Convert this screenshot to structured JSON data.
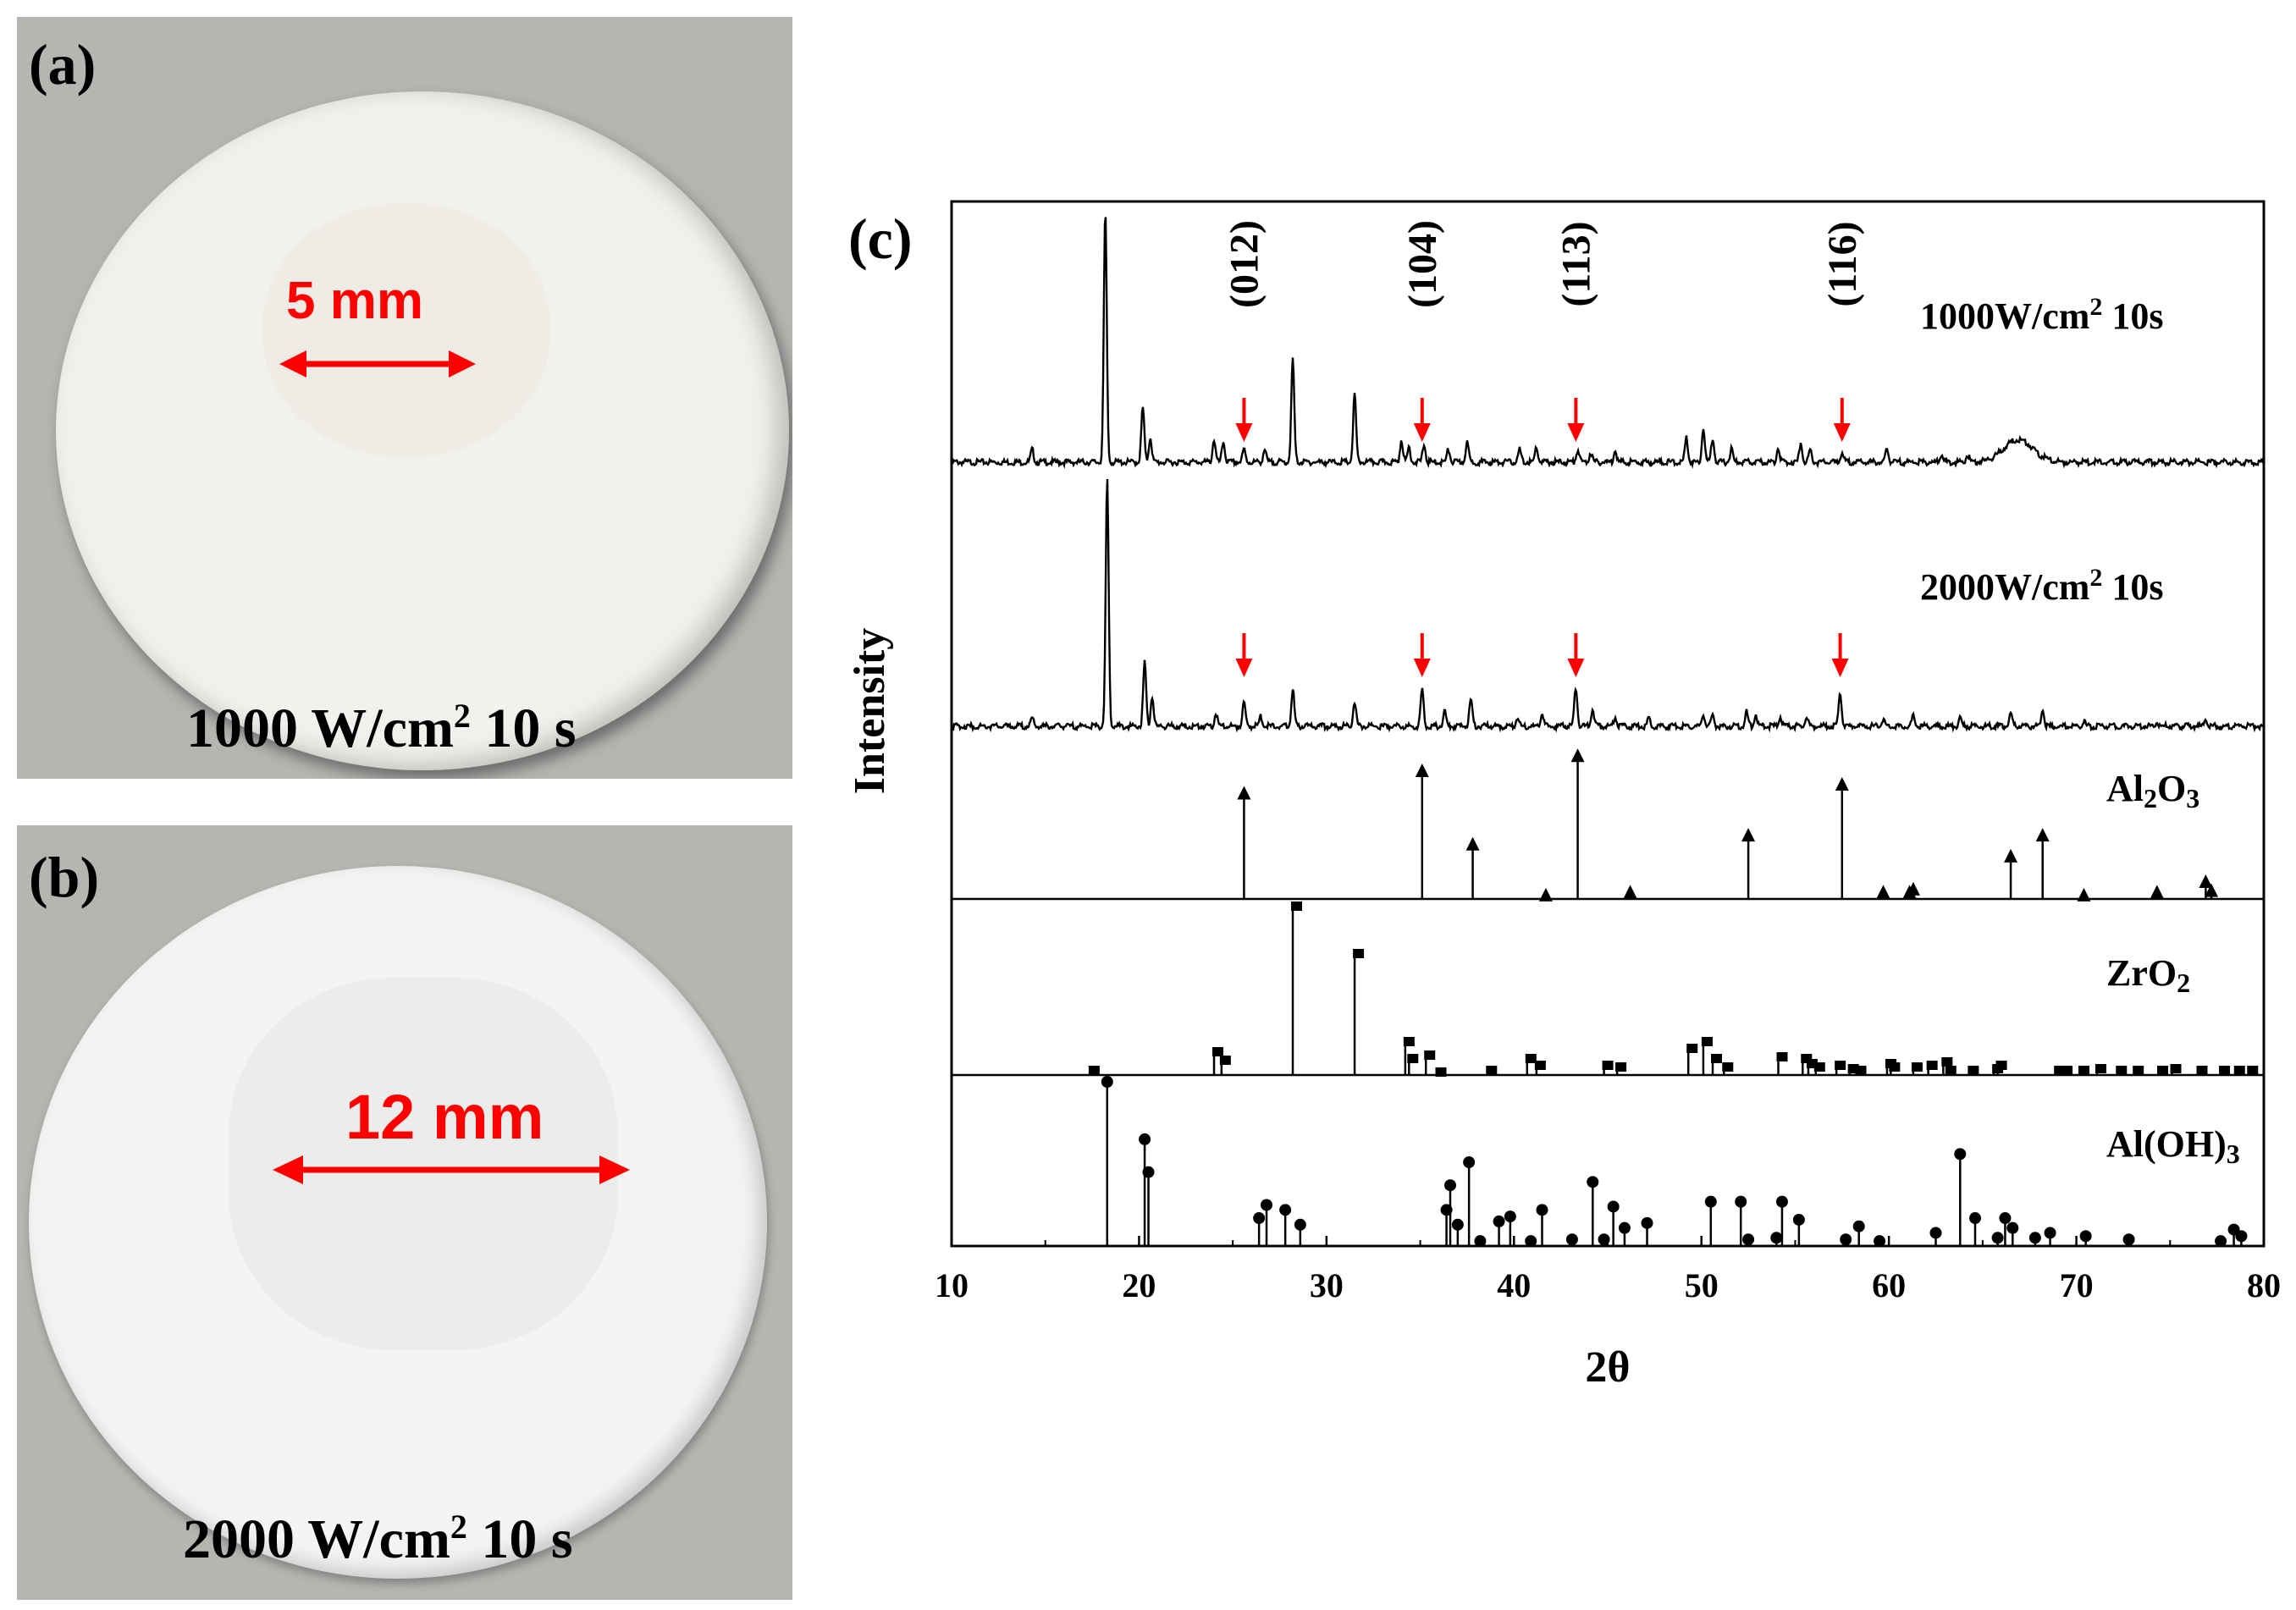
{
  "figure": {
    "panels": [
      {
        "label": "(a)",
        "caption_main": "1000 W/cm",
        "caption_sup": "2",
        "caption_end": " 10 s",
        "measure_text": "5 mm"
      },
      {
        "label": "(b)",
        "caption_main": "2000 W/cm",
        "caption_sup": "2",
        "caption_end": " 10 s",
        "measure_text": "12 mm"
      }
    ],
    "chart_label": "(c)",
    "colors": {
      "accent_red": "#ff0000",
      "photo_bg": "#b5b5b2",
      "disc": "#f2f2ee",
      "line": "#000000"
    }
  },
  "chart_data": {
    "type": "line",
    "xlabel": "2θ",
    "ylabel": "Intensity",
    "xlim": [
      10,
      80
    ],
    "xticks": [
      10,
      20,
      30,
      40,
      50,
      60,
      70,
      80
    ],
    "series": [
      {
        "name": "1000W/cm² 10s",
        "label_main": "1000W/cm",
        "label_sup": "2",
        "label_end": " 10s",
        "peaks": [
          [
            14.3,
            0.05
          ],
          [
            18.2,
            1.0
          ],
          [
            20.2,
            0.22
          ],
          [
            20.6,
            0.1
          ],
          [
            24.0,
            0.09
          ],
          [
            24.5,
            0.08
          ],
          [
            25.6,
            0.05
          ],
          [
            26.7,
            0.05
          ],
          [
            28.2,
            0.41
          ],
          [
            31.5,
            0.27
          ],
          [
            34.0,
            0.09
          ],
          [
            34.4,
            0.06
          ],
          [
            35.2,
            0.07
          ],
          [
            36.5,
            0.05
          ],
          [
            37.5,
            0.08
          ],
          [
            40.3,
            0.05
          ],
          [
            41.2,
            0.06
          ],
          [
            43.4,
            0.05
          ],
          [
            44.1,
            0.04
          ],
          [
            45.4,
            0.05
          ],
          [
            49.2,
            0.1
          ],
          [
            50.1,
            0.14
          ],
          [
            50.6,
            0.1
          ],
          [
            51.6,
            0.05
          ],
          [
            54.1,
            0.06
          ],
          [
            55.3,
            0.08
          ],
          [
            55.8,
            0.05
          ],
          [
            57.5,
            0.04
          ],
          [
            59.9,
            0.05
          ],
          [
            62.8,
            0.03
          ],
          [
            64.2,
            0.03
          ]
        ],
        "humps": [
          [
            66.9,
            1.1,
            0.09
          ]
        ],
        "hkl_arrows": [
          {
            "x": 25.6,
            "hkl": "(012)"
          },
          {
            "x": 35.1,
            "hkl": "(104)"
          },
          {
            "x": 43.3,
            "hkl": "(113)"
          },
          {
            "x": 57.5,
            "hkl": "(116)"
          }
        ]
      },
      {
        "name": "2000W/cm² 10s",
        "label_main": "2000W/cm",
        "label_sup": "2",
        "label_end": " 10s",
        "peaks": [
          [
            14.3,
            0.03
          ],
          [
            18.3,
            1.0
          ],
          [
            20.3,
            0.26
          ],
          [
            20.7,
            0.12
          ],
          [
            24.1,
            0.05
          ],
          [
            25.6,
            0.1
          ],
          [
            26.5,
            0.04
          ],
          [
            28.2,
            0.15
          ],
          [
            31.5,
            0.1
          ],
          [
            35.1,
            0.15
          ],
          [
            36.3,
            0.06
          ],
          [
            37.7,
            0.11
          ],
          [
            40.2,
            0.04
          ],
          [
            41.5,
            0.05
          ],
          [
            43.3,
            0.16
          ],
          [
            44.2,
            0.07
          ],
          [
            45.4,
            0.04
          ],
          [
            47.2,
            0.03
          ],
          [
            50.1,
            0.05
          ],
          [
            50.6,
            0.04
          ],
          [
            52.4,
            0.06
          ],
          [
            52.9,
            0.05
          ],
          [
            54.2,
            0.04
          ],
          [
            55.6,
            0.04
          ],
          [
            57.4,
            0.14
          ],
          [
            59.7,
            0.03
          ],
          [
            61.3,
            0.04
          ],
          [
            63.8,
            0.03
          ],
          [
            66.5,
            0.05
          ],
          [
            68.2,
            0.07
          ],
          [
            70.4,
            0.02
          ],
          [
            74.3,
            0.02
          ],
          [
            76.9,
            0.03
          ]
        ],
        "arrows": [
          25.6,
          35.1,
          43.3,
          57.4
        ]
      }
    ],
    "references": [
      {
        "name": "Al2O3",
        "label_main": "Al",
        "sub1": "2",
        "label_mid": "O",
        "sub2": "3",
        "marker": "arrow",
        "sticks": [
          [
            25.6,
            0.72
          ],
          [
            35.1,
            0.87
          ],
          [
            37.8,
            0.38
          ],
          [
            41.7,
            0.04
          ],
          [
            43.4,
            0.97
          ],
          [
            46.2,
            0.06
          ],
          [
            52.5,
            0.44
          ],
          [
            57.5,
            0.78
          ],
          [
            59.7,
            0.06
          ],
          [
            61.1,
            0.06
          ],
          [
            61.3,
            0.08
          ],
          [
            66.5,
            0.3
          ],
          [
            68.2,
            0.44
          ],
          [
            70.4,
            0.04
          ],
          [
            74.3,
            0.06
          ],
          [
            76.9,
            0.13
          ],
          [
            77.2,
            0.07
          ]
        ]
      },
      {
        "name": "ZrO2",
        "label_main": "ZrO",
        "sub1": "2",
        "label_mid": "",
        "sub2": "",
        "marker": "square",
        "sticks": [
          [
            17.4,
            0.03
          ],
          [
            24.0,
            0.14
          ],
          [
            24.4,
            0.09
          ],
          [
            28.2,
            1.0
          ],
          [
            31.5,
            0.72
          ],
          [
            34.2,
            0.2
          ],
          [
            34.4,
            0.1
          ],
          [
            35.3,
            0.12
          ],
          [
            35.9,
            0.02
          ],
          [
            38.6,
            0.03
          ],
          [
            40.7,
            0.1
          ],
          [
            41.2,
            0.06
          ],
          [
            44.8,
            0.06
          ],
          [
            45.5,
            0.05
          ],
          [
            49.3,
            0.16
          ],
          [
            50.1,
            0.2
          ],
          [
            50.6,
            0.1
          ],
          [
            51.2,
            0.05
          ],
          [
            54.1,
            0.11
          ],
          [
            55.4,
            0.1
          ],
          [
            55.7,
            0.07
          ],
          [
            56.1,
            0.05
          ],
          [
            57.2,
            0.06
          ],
          [
            57.9,
            0.04
          ],
          [
            58.3,
            0.03
          ],
          [
            59.9,
            0.07
          ],
          [
            60.1,
            0.05
          ],
          [
            61.3,
            0.05
          ],
          [
            62.1,
            0.06
          ],
          [
            62.9,
            0.08
          ],
          [
            63.1,
            0.03
          ],
          [
            64.3,
            0.03
          ],
          [
            65.6,
            0.04
          ],
          [
            65.8,
            0.06
          ],
          [
            68.9,
            0.03
          ],
          [
            69.3,
            0.03
          ],
          [
            70.2,
            0.03
          ],
          [
            71.1,
            0.04
          ],
          [
            72.2,
            0.03
          ],
          [
            73.1,
            0.03
          ],
          [
            74.4,
            0.03
          ],
          [
            75.1,
            0.04
          ],
          [
            76.5,
            0.03
          ],
          [
            77.7,
            0.03
          ],
          [
            78.5,
            0.03
          ],
          [
            79.2,
            0.03
          ]
        ]
      },
      {
        "name": "Al(OH)3",
        "label_main": "Al(OH)",
        "sub1": "3",
        "label_mid": "",
        "sub2": "",
        "marker": "circle",
        "sticks": [
          [
            18.3,
            1.0
          ],
          [
            20.3,
            0.65
          ],
          [
            20.5,
            0.45
          ],
          [
            26.4,
            0.17
          ],
          [
            26.8,
            0.25
          ],
          [
            27.8,
            0.22
          ],
          [
            28.6,
            0.13
          ],
          [
            36.4,
            0.22
          ],
          [
            36.6,
            0.37
          ],
          [
            37.0,
            0.13
          ],
          [
            37.6,
            0.51
          ],
          [
            38.2,
            0.03
          ],
          [
            39.2,
            0.15
          ],
          [
            39.8,
            0.18
          ],
          [
            40.9,
            0.03
          ],
          [
            41.5,
            0.22
          ],
          [
            43.1,
            0.04
          ],
          [
            44.2,
            0.39
          ],
          [
            44.8,
            0.04
          ],
          [
            45.3,
            0.24
          ],
          [
            45.9,
            0.11
          ],
          [
            47.1,
            0.14
          ],
          [
            50.5,
            0.27
          ],
          [
            52.1,
            0.27
          ],
          [
            52.5,
            0.04
          ],
          [
            54.0,
            0.05
          ],
          [
            54.3,
            0.27
          ],
          [
            55.2,
            0.16
          ],
          [
            57.7,
            0.04
          ],
          [
            58.4,
            0.12
          ],
          [
            59.5,
            0.03
          ],
          [
            62.5,
            0.08
          ],
          [
            63.8,
            0.56
          ],
          [
            64.6,
            0.17
          ],
          [
            65.8,
            0.05
          ],
          [
            66.2,
            0.17
          ],
          [
            66.6,
            0.11
          ],
          [
            67.8,
            0.05
          ],
          [
            68.6,
            0.08
          ],
          [
            70.5,
            0.06
          ],
          [
            72.8,
            0.04
          ],
          [
            77.7,
            0.03
          ],
          [
            78.4,
            0.1
          ],
          [
            78.8,
            0.06
          ]
        ]
      }
    ]
  }
}
